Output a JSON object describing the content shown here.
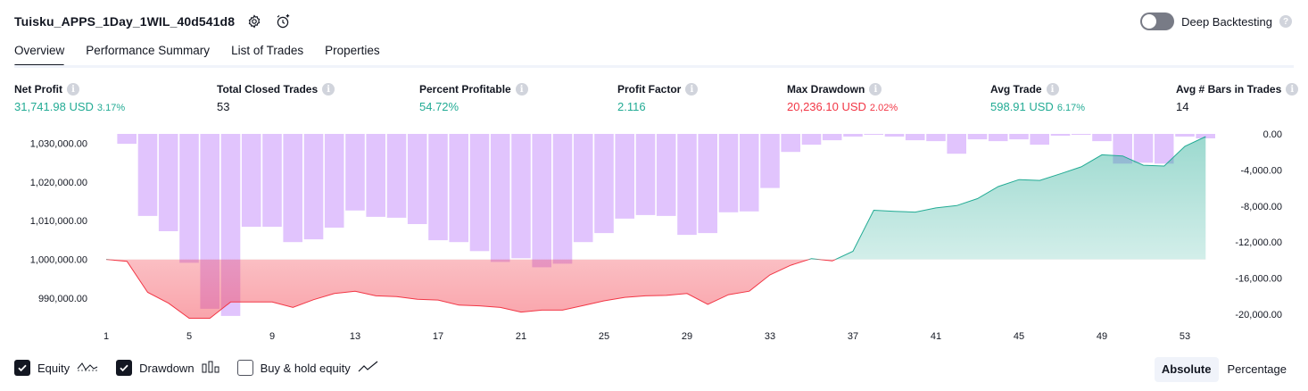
{
  "header": {
    "strategy_title": "Tuisku_APPS_1Day_1WIL_40d541d8",
    "settings_icon": "gear-icon",
    "alert_icon": "alarm-clock-plus-icon",
    "deep_backtesting_label": "Deep Backtesting",
    "deep_backtesting_enabled": false,
    "help_icon": "question-icon"
  },
  "tabs": [
    {
      "label": "Overview",
      "active": true
    },
    {
      "label": "Performance Summary",
      "active": false
    },
    {
      "label": "List of Trades",
      "active": false
    },
    {
      "label": "Properties",
      "active": false
    }
  ],
  "metrics": {
    "net_profit": {
      "label": "Net Profit",
      "value": "31,741.98 USD",
      "pct": "3.17%"
    },
    "total_closed_trades": {
      "label": "Total Closed Trades",
      "value": "53"
    },
    "percent_profitable": {
      "label": "Percent Profitable",
      "value": "54.72%"
    },
    "profit_factor": {
      "label": "Profit Factor",
      "value": "2.116"
    },
    "max_drawdown": {
      "label": "Max Drawdown",
      "value": "20,236.10 USD",
      "pct": "2.02%"
    },
    "avg_trade": {
      "label": "Avg Trade",
      "value": "598.91 USD",
      "pct": "6.17%"
    },
    "avg_bars_in_trades": {
      "label": "Avg # Bars in Trades",
      "value": "14"
    }
  },
  "chart_data": {
    "type": "line",
    "x_ticks": [
      "1",
      "5",
      "9",
      "13",
      "17",
      "21",
      "25",
      "29",
      "33",
      "37",
      "41",
      "45",
      "49",
      "53"
    ],
    "left_axis_ticks": [
      "1,030,000.00",
      "1,020,000.00",
      "1,010,000.00",
      "1,000,000.00",
      "990,000.00"
    ],
    "right_axis_ticks": [
      "0.00",
      "-4,000.00",
      "-8,000.00",
      "-12,000.00",
      "-16,000.00",
      "-20,000.00"
    ],
    "left_ylim": [
      984000,
      1032400
    ],
    "right_ylim": [
      -20800,
      0
    ],
    "baseline": 1000000,
    "equity": {
      "trade": [
        1,
        2,
        3,
        4,
        5,
        6,
        7,
        8,
        9,
        10,
        11,
        12,
        13,
        14,
        15,
        16,
        17,
        18,
        19,
        20,
        21,
        22,
        23,
        24,
        25,
        26,
        27,
        28,
        29,
        30,
        31,
        32,
        33,
        34,
        35,
        36,
        37,
        38,
        39,
        40,
        41,
        42,
        43,
        44,
        45,
        46,
        47,
        48,
        49,
        50,
        51,
        52,
        53,
        54
      ],
      "values": [
        1000000,
        999500,
        991500,
        988700,
        984800,
        984800,
        989000,
        989000,
        989000,
        987600,
        989600,
        991200,
        991800,
        990600,
        990400,
        989700,
        989500,
        988200,
        988000,
        987600,
        986400,
        986900,
        986900,
        988100,
        989300,
        990200,
        990600,
        990700,
        991200,
        988400,
        990900,
        991800,
        996000,
        998500,
        1000200,
        999600,
        1002100,
        1012700,
        1012400,
        1012200,
        1013300,
        1013900,
        1015700,
        1018800,
        1020600,
        1020400,
        1022100,
        1023900,
        1027000,
        1026700,
        1024300,
        1024100,
        1029200,
        1031700
      ]
    },
    "drawdown": {
      "trade": [
        2,
        3,
        4,
        5,
        6,
        7,
        8,
        9,
        10,
        11,
        12,
        13,
        14,
        15,
        16,
        17,
        18,
        19,
        20,
        21,
        22,
        23,
        24,
        25,
        26,
        27,
        28,
        29,
        30,
        31,
        32,
        33,
        34,
        35,
        36,
        37,
        38,
        39,
        40,
        41,
        42,
        43,
        44,
        45,
        46,
        47,
        48,
        49,
        50,
        51,
        52,
        53,
        54
      ],
      "values": [
        -1100,
        -9100,
        -10800,
        -14300,
        -19400,
        -20200,
        -10300,
        -10300,
        -12000,
        -11700,
        -10400,
        -8500,
        -9200,
        -9300,
        -10000,
        -11800,
        -12000,
        -13000,
        -14200,
        -13800,
        -14800,
        -14400,
        -12000,
        -11000,
        -9400,
        -9000,
        -9100,
        -11200,
        -11000,
        -8700,
        -8600,
        -6000,
        -2000,
        -1200,
        -700,
        -300,
        -100,
        -300,
        -700,
        -800,
        -2200,
        -600,
        -800,
        -600,
        -1200,
        -200,
        -100,
        -800,
        -3300,
        -3200,
        -3300,
        -300,
        -500
      ]
    },
    "colors": {
      "drawdown_bar": "#e1c4fd",
      "equity_positive_line": "#22ab94",
      "equity_negative_line": "#f23645"
    }
  },
  "legend": {
    "items": [
      {
        "label": "Equity",
        "checked": true,
        "icon": "line-chart-icon"
      },
      {
        "label": "Drawdown",
        "checked": true,
        "icon": "bar-chart-icon"
      },
      {
        "label": "Buy & hold equity",
        "checked": false,
        "icon": "trend-line-icon"
      }
    ],
    "scale_options": [
      "Absolute",
      "Percentage"
    ],
    "scale_selected": "Absolute"
  }
}
